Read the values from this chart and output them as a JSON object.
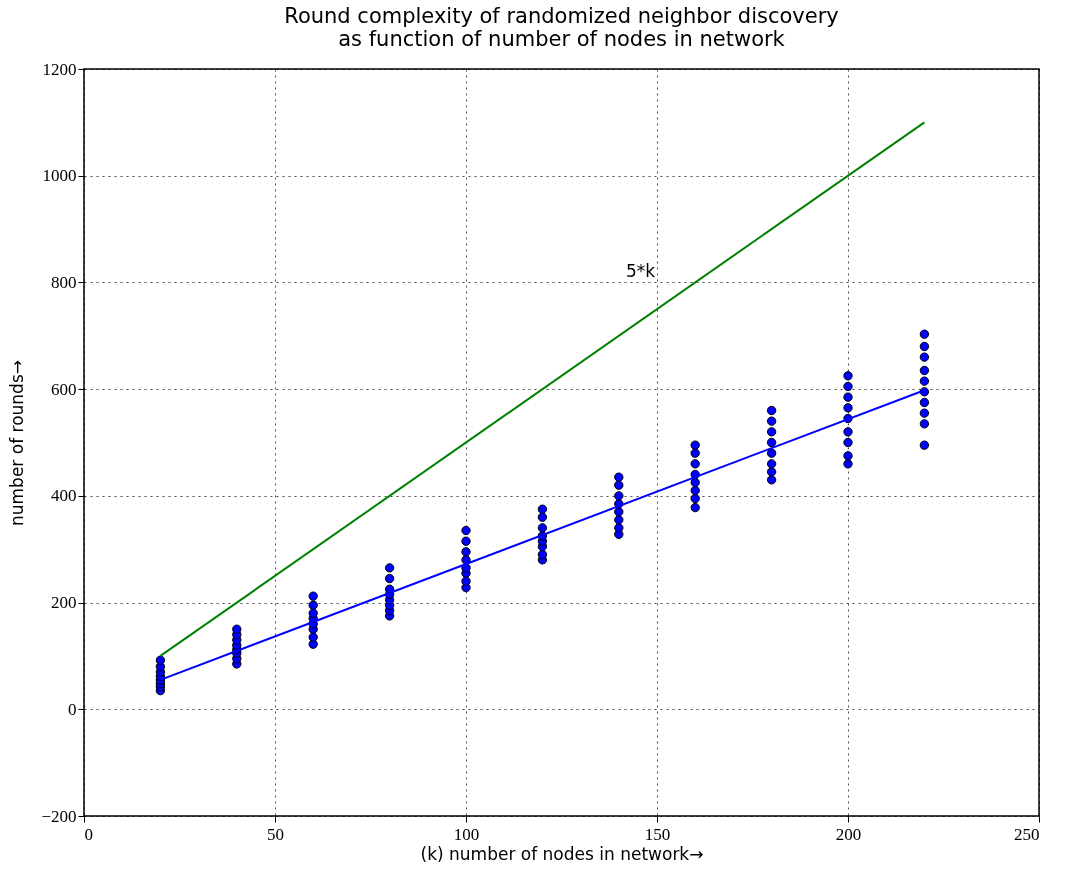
{
  "chart_data": {
    "type": "scatter",
    "title": "Round complexity of randomized neighbor discovery\nas function of number of nodes in network",
    "xlabel": "(k) number of nodes in network→",
    "ylabel": "number of rounds→",
    "xlim": [
      0,
      250
    ],
    "xticks": [
      0,
      50,
      100,
      150,
      200,
      250
    ],
    "ylim": [
      -200,
      1200
    ],
    "yticks": [
      -200,
      0,
      200,
      400,
      600,
      800,
      1000,
      1200
    ],
    "grid": true,
    "series": [
      {
        "marker": "circle",
        "color": "#0000ff",
        "x": [
          20,
          20,
          20,
          20,
          20,
          20,
          20,
          20,
          40,
          40,
          40,
          40,
          40,
          40,
          40,
          40,
          60,
          60,
          60,
          60,
          60,
          60,
          60,
          60,
          80,
          80,
          80,
          80,
          80,
          80,
          80,
          80,
          100,
          100,
          100,
          100,
          100,
          100,
          100,
          100,
          120,
          120,
          120,
          120,
          120,
          120,
          120,
          120,
          140,
          140,
          140,
          140,
          140,
          140,
          140,
          140,
          160,
          160,
          160,
          160,
          160,
          160,
          160,
          160,
          180,
          180,
          180,
          180,
          180,
          180,
          180,
          180,
          200,
          200,
          200,
          200,
          200,
          200,
          200,
          200,
          200,
          220,
          220,
          220,
          220,
          220,
          220,
          220,
          220,
          220,
          220
        ],
        "values": [
          35,
          42,
          48,
          55,
          62,
          70,
          80,
          92,
          85,
          95,
          105,
          112,
          120,
          130,
          140,
          150,
          122,
          135,
          150,
          160,
          170,
          180,
          195,
          212,
          175,
          185,
          195,
          205,
          215,
          225,
          245,
          265,
          228,
          240,
          255,
          265,
          280,
          295,
          315,
          335,
          280,
          290,
          305,
          315,
          325,
          340,
          360,
          375,
          328,
          340,
          355,
          370,
          385,
          400,
          420,
          435,
          378,
          395,
          410,
          425,
          440,
          460,
          480,
          495,
          430,
          445,
          460,
          480,
          500,
          520,
          540,
          560,
          460,
          475,
          500,
          520,
          545,
          565,
          585,
          605,
          625,
          495,
          535,
          555,
          575,
          595,
          615,
          635,
          660,
          680,
          703
        ]
      },
      {
        "type": "line",
        "color": "#0000ff",
        "x": [
          20,
          220
        ],
        "values": [
          55,
          598
        ]
      },
      {
        "type": "line",
        "name": "5*k",
        "color": "#008000",
        "x": [
          20,
          220
        ],
        "values": [
          100,
          1100
        ]
      }
    ]
  }
}
